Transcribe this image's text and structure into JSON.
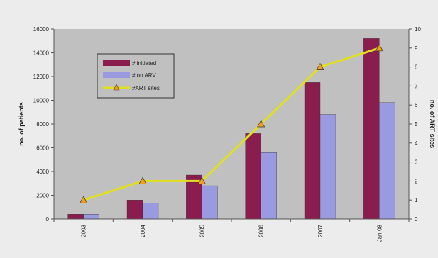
{
  "chart_data": {
    "type": "bar",
    "categories": [
      "2003",
      "2004",
      "2005",
      "2006",
      "2007",
      "Jan-08"
    ],
    "series": [
      {
        "name": "# initiated",
        "type": "bar",
        "axis": "left",
        "color": "#8a1c4e",
        "values": [
          400,
          1600,
          3700,
          7200,
          11500,
          15200
        ]
      },
      {
        "name": "# on ARV",
        "type": "bar",
        "axis": "left",
        "color": "#9a9ae0",
        "values": [
          400,
          1350,
          2800,
          5600,
          8800,
          9800
        ]
      },
      {
        "name": "#ART sites",
        "type": "line",
        "axis": "right",
        "color": "#e0e020",
        "marker_color": "#f0a020",
        "values": [
          1,
          2,
          2,
          5,
          8,
          9
        ]
      }
    ],
    "ylabel": "no. of patients",
    "y2label": "no. of ART sites",
    "ylim": [
      0,
      16000
    ],
    "yticks": [
      "0",
      "2000",
      "4000",
      "6000",
      "8000",
      "10000",
      "12000",
      "14000",
      "16000"
    ],
    "y2lim": [
      0,
      10
    ],
    "y2ticks": [
      "0",
      "1",
      "2",
      "3",
      "4",
      "5",
      "6",
      "7",
      "8",
      "9",
      "10"
    ],
    "plot_background": "#c0c0c0",
    "legend_placement": "top-left",
    "grid": false
  }
}
